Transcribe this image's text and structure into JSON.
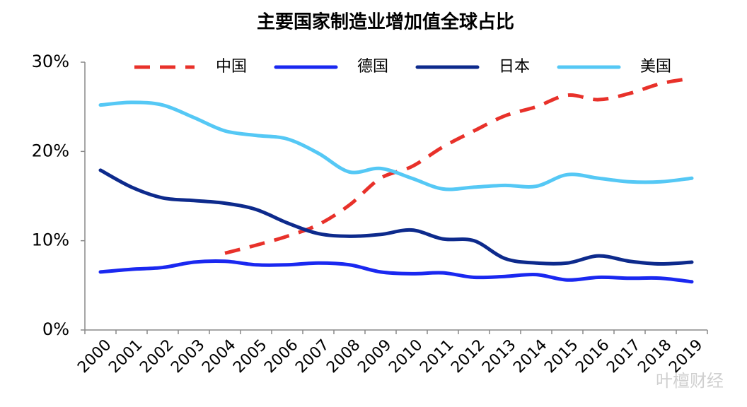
{
  "chart_data": {
    "type": "line",
    "title": "主要国家制造业增加值全球占比",
    "categories": [
      "2000",
      "2001",
      "2002",
      "2003",
      "2004",
      "2005",
      "2006",
      "2007",
      "2008",
      "2009",
      "2010",
      "2011",
      "2012",
      "2013",
      "2014",
      "2015",
      "2016",
      "2017",
      "2018",
      "2019"
    ],
    "series": [
      {
        "name": "中国",
        "color": "#e8312a",
        "dash": true,
        "values": [
          null,
          null,
          null,
          null,
          8.6,
          9.5,
          10.5,
          11.8,
          14.0,
          17.0,
          18.3,
          20.5,
          22.3,
          24.0,
          25.0,
          26.3,
          25.8,
          26.5,
          27.6,
          28.2
        ]
      },
      {
        "name": "德国",
        "color": "#1a28f0",
        "dash": false,
        "values": [
          6.5,
          6.8,
          7.0,
          7.6,
          7.7,
          7.3,
          7.3,
          7.5,
          7.3,
          6.5,
          6.3,
          6.4,
          5.9,
          6.0,
          6.2,
          5.6,
          5.9,
          5.8,
          5.8,
          5.4
        ]
      },
      {
        "name": "日本",
        "color": "#0d2a8c",
        "dash": false,
        "values": [
          17.9,
          16.0,
          14.8,
          14.5,
          14.2,
          13.5,
          12.0,
          10.8,
          10.5,
          10.7,
          11.2,
          10.2,
          10.0,
          8.0,
          7.5,
          7.5,
          8.3,
          7.7,
          7.4,
          7.6
        ]
      },
      {
        "name": "美国",
        "color": "#55c8f5",
        "dash": false,
        "values": [
          25.2,
          25.5,
          25.2,
          23.8,
          22.3,
          21.8,
          21.4,
          19.8,
          17.7,
          18.1,
          17.0,
          15.8,
          16.0,
          16.2,
          16.1,
          17.4,
          17.0,
          16.6,
          16.6,
          17.0
        ]
      }
    ],
    "ylim": [
      0,
      30
    ],
    "yticks": [
      {
        "value": 0,
        "label": "0%"
      },
      {
        "value": 10,
        "label": "10%"
      },
      {
        "value": 20,
        "label": "20%"
      },
      {
        "value": 30,
        "label": "30%"
      }
    ],
    "grid": false,
    "legend": "top",
    "watermark": "叶檀财经"
  }
}
